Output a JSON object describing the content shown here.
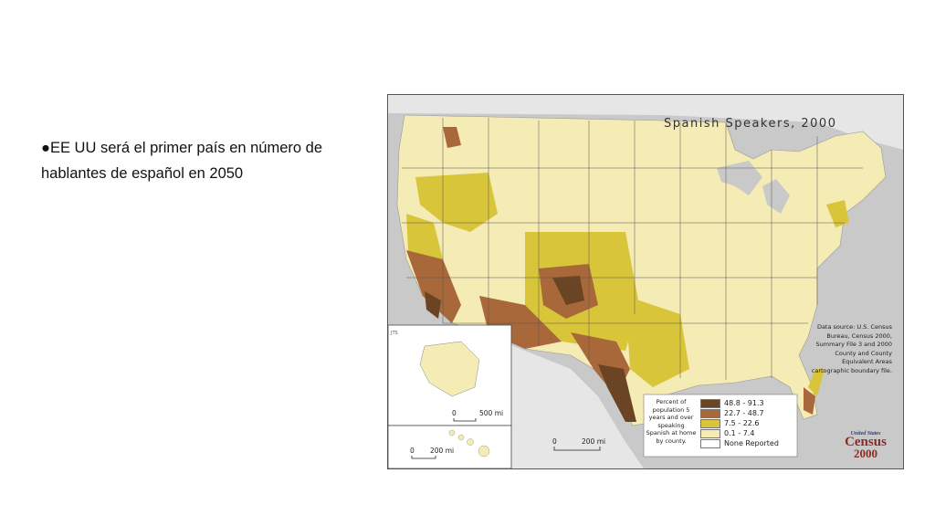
{
  "slide": {
    "bullet_text": "●EE UU será el primer país en número de hablantes de español en 2050"
  },
  "map": {
    "title": "Spanish Speakers, 2000",
    "data_source": "Data source: U.S. Census Bureau, Census 2000, Summary File 3 and 2000 County and County Equivalent Areas cartographic boundary file.",
    "legend_caption": "Percent of population 5 years and over speaking Spanish at home by county.",
    "legend": [
      {
        "label": "48.8 - 91.3",
        "color": "#6b4423"
      },
      {
        "label": "22.7 - 48.7",
        "color": "#a8683a"
      },
      {
        "label": "7.5 - 22.6",
        "color": "#d8c53a"
      },
      {
        "label": "0.1 - 7.4",
        "color": "#f5ebb4"
      },
      {
        "label": "None Reported",
        "color": "#ffffff"
      }
    ],
    "scale_main": {
      "zero": "0",
      "distance": "200 mi"
    },
    "scale_alaska": {
      "zero": "0",
      "distance": "500 mi"
    },
    "scale_hawaii": {
      "zero": "0",
      "distance": "200 mi"
    },
    "credit": "JTS",
    "logo": {
      "line1": "United States",
      "line2": "Census",
      "line3": "2000"
    }
  }
}
